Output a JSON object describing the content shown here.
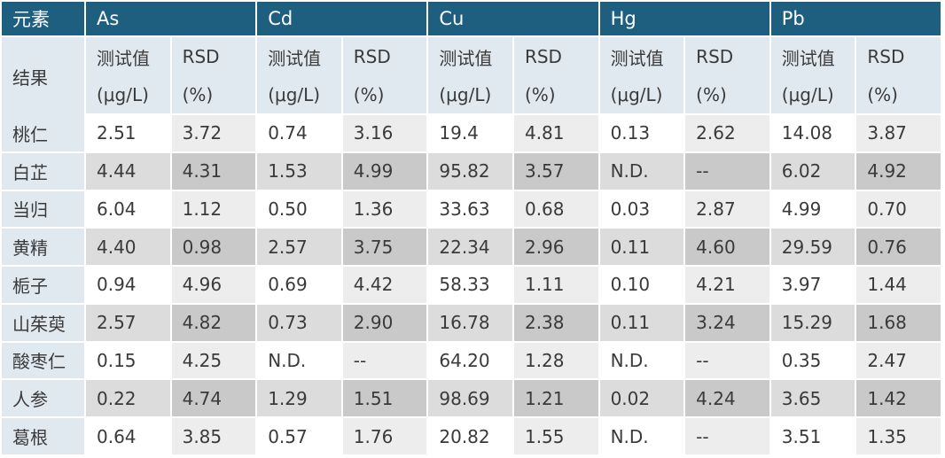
{
  "header": {
    "element_label": "元素",
    "result_label": "结果",
    "elements": [
      "As",
      "Cd",
      "Cu",
      "Hg",
      "Pb"
    ],
    "value_label": "测试值",
    "value_unit": "(μg/L)",
    "rsd_label": "RSD",
    "rsd_unit": "(%)"
  },
  "rows": [
    {
      "name": "桃仁",
      "values": [
        "2.51",
        "3.72",
        "0.74",
        "3.16",
        "19.4",
        "4.81",
        "0.13",
        "2.62",
        "14.08",
        "3.87"
      ]
    },
    {
      "name": "白芷",
      "values": [
        "4.44",
        "4.31",
        "1.53",
        "4.99",
        "95.82",
        "3.57",
        "N.D.",
        "--",
        "6.02",
        "4.92"
      ]
    },
    {
      "name": "当归",
      "values": [
        "6.04",
        "1.12",
        "0.50",
        "1.36",
        "33.63",
        "0.68",
        "0.03",
        "2.87",
        "4.99",
        "0.70"
      ]
    },
    {
      "name": "黄精",
      "values": [
        "4.40",
        "0.98",
        "2.57",
        "3.75",
        "22.34",
        "2.96",
        "0.11",
        "4.60",
        "29.59",
        "0.76"
      ]
    },
    {
      "name": "栀子",
      "values": [
        "0.94",
        "4.96",
        "0.69",
        "4.42",
        "58.33",
        "1.11",
        "0.10",
        "4.21",
        "3.97",
        "1.44"
      ]
    },
    {
      "name": "山茱萸",
      "values": [
        "2.57",
        "4.82",
        "0.73",
        "2.90",
        "16.78",
        "2.38",
        "0.11",
        "3.24",
        "15.29",
        "1.68"
      ]
    },
    {
      "name": "酸枣仁",
      "values": [
        "0.15",
        "4.25",
        "N.D.",
        "--",
        "64.20",
        "1.28",
        "N.D.",
        "--",
        "0.35",
        "2.47"
      ]
    },
    {
      "name": "人参",
      "values": [
        "0.22",
        "4.74",
        "1.29",
        "1.51",
        "98.69",
        "1.21",
        "0.02",
        "4.24",
        "3.65",
        "1.42"
      ]
    },
    {
      "name": "葛根",
      "values": [
        "0.64",
        "3.85",
        "0.57",
        "1.76",
        "20.82",
        "1.55",
        "N.D.",
        "--",
        "3.51",
        "1.35"
      ]
    }
  ]
}
